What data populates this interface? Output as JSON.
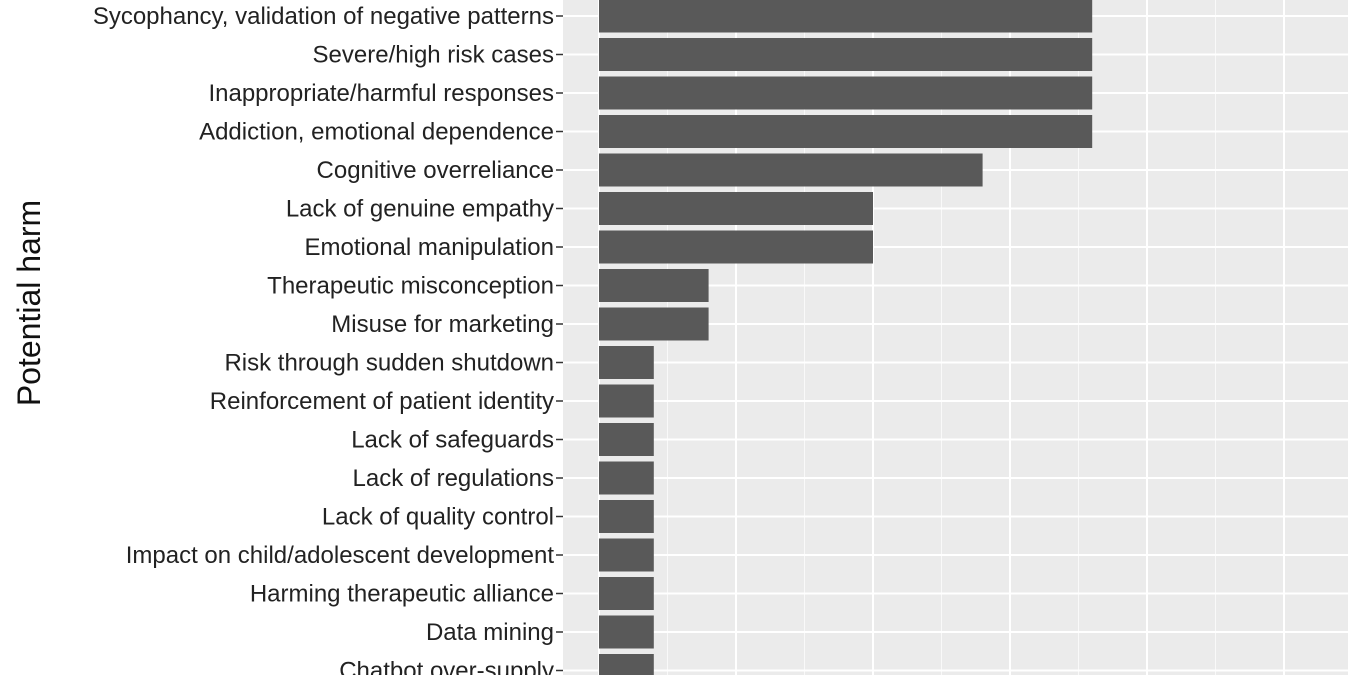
{
  "chart_data": {
    "type": "bar",
    "orientation": "horizontal",
    "title": "",
    "xlabel": "",
    "ylabel": "Potential harm",
    "categories": [
      "Sycophancy, validation of negative patterns",
      "Severe/high risk cases",
      "Inappropriate/harmful responses",
      "Addiction, emotional dependence",
      "Cognitive overreliance",
      "Lack of genuine empathy",
      "Emotional manipulation",
      "Therapeutic misconception",
      "Misuse for marketing",
      "Risk through sudden shutdown",
      "Reinforcement of patient identity",
      "Lack of safeguards",
      "Lack of regulations",
      "Lack of quality control",
      "Impact on child/adolescent development",
      "Harming therapeutic alliance",
      "Data mining",
      "Chatbot over-supply"
    ],
    "values": [
      9,
      9,
      9,
      9,
      7,
      5,
      5,
      2,
      2,
      1,
      1,
      1,
      1,
      1,
      1,
      1,
      1,
      1
    ],
    "xlim": [
      0,
      13.5
    ],
    "grid": true,
    "legend": "none",
    "bar_color": "#595959",
    "panel_color": "#ebebeb",
    "grid_color": "#ffffff"
  }
}
